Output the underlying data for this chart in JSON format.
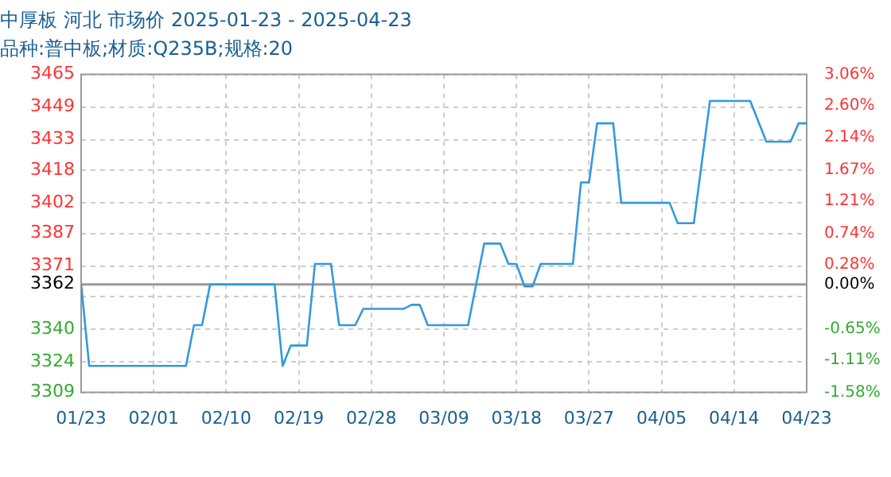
{
  "chart_data": {
    "type": "line",
    "title": "中厚板 河北 市场价 2025-01-23 - 2025-04-23",
    "subtitle": "品种:普中板;材质:Q235B;规格:20",
    "x": [
      "2025-01-23",
      "2025-01-24",
      "2025-02-05",
      "2025-02-06",
      "2025-02-07",
      "2025-02-08",
      "2025-02-16",
      "2025-02-17",
      "2025-02-18",
      "2025-02-20",
      "2025-02-21",
      "2025-02-23",
      "2025-02-24",
      "2025-02-26",
      "2025-02-27",
      "2025-03-04",
      "2025-03-05",
      "2025-03-06",
      "2025-03-07",
      "2025-03-12",
      "2025-03-14",
      "2025-03-16",
      "2025-03-17",
      "2025-03-18",
      "2025-03-19",
      "2025-03-20",
      "2025-03-21",
      "2025-03-25",
      "2025-03-26",
      "2025-03-27",
      "2025-03-28",
      "2025-03-30",
      "2025-03-31",
      "2025-04-06",
      "2025-04-07",
      "2025-04-09",
      "2025-04-11",
      "2025-04-16",
      "2025-04-18",
      "2025-04-21",
      "2025-04-22",
      "2025-04-23"
    ],
    "series": [
      {
        "color": "#3399dd",
        "values": [
          3362,
          3322,
          3322,
          3342,
          3342,
          3362,
          3362,
          3322,
          3332,
          3332,
          3372,
          3372,
          3342,
          3342,
          3350,
          3350,
          3352,
          3352,
          3342,
          3342,
          3382,
          3382,
          3372,
          3372,
          3361,
          3361,
          3372,
          3372,
          3412,
          3412,
          3441,
          3441,
          3402,
          3402,
          3392,
          3392,
          3452,
          3452,
          3432,
          3432,
          3441,
          3441
        ]
      }
    ],
    "xlim": [
      "2025-01-23",
      "2025-04-23"
    ],
    "xticks": [
      {
        "value": "2025-01-23",
        "label": "01/23"
      },
      {
        "value": "2025-02-01",
        "label": "02/01"
      },
      {
        "value": "2025-02-10",
        "label": "02/10"
      },
      {
        "value": "2025-02-19",
        "label": "02/19"
      },
      {
        "value": "2025-02-28",
        "label": "02/28"
      },
      {
        "value": "2025-03-09",
        "label": "03/09"
      },
      {
        "value": "2025-03-18",
        "label": "03/18"
      },
      {
        "value": "2025-03-27",
        "label": "03/27"
      },
      {
        "value": "2025-04-05",
        "label": "04/05"
      },
      {
        "value": "2025-04-14",
        "label": "04/14"
      },
      {
        "value": "2025-04-23",
        "label": "04/23"
      }
    ],
    "ylim": [
      3309,
      3465
    ],
    "yticks": [
      3309,
      3324,
      3340,
      {
        "value": 3356,
        "label": null
      },
      3362,
      3371,
      3387,
      3402,
      3418,
      3433,
      3449,
      3465
    ],
    "y2lim": [
      -1.58,
      3.06
    ],
    "y2ticks": [
      {
        "value": -1.58,
        "label": "-1.58%"
      },
      {
        "value": -1.11,
        "label": "-1.11%"
      },
      {
        "value": -0.65,
        "label": "-0.65%"
      },
      {
        "value": 0,
        "label": "0.00%"
      },
      {
        "value": 0.28,
        "label": "0.28%"
      },
      {
        "value": 0.74,
        "label": "0.74%"
      },
      {
        "value": 1.21,
        "label": "1.21%"
      },
      {
        "value": 1.67,
        "label": "1.67%"
      },
      {
        "value": 2.14,
        "label": "2.14%"
      },
      {
        "value": 2.6,
        "label": "2.60%"
      },
      {
        "value": 3.06,
        "label": "3.06%"
      }
    ],
    "ref_lines": [
      {
        "axis": "y",
        "value": 3362,
        "color": "#999999"
      }
    ],
    "grid": true,
    "legend": false,
    "marker": "none",
    "line_style": "solid"
  }
}
